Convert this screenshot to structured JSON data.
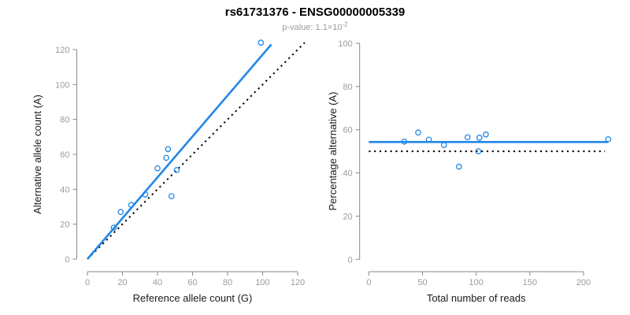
{
  "header": {
    "title": "rs61731376 - ENSG00000005339",
    "pvalue_prefix": "p-value: 1.1×10",
    "pvalue_exponent": "-2"
  },
  "colors": {
    "accent_blue": "#2287e8",
    "identity_line": "#000000",
    "axis_line": "#898989",
    "tick_label": "#9b9b9b",
    "axis_title": "#1a1a1a"
  },
  "chart_data": [
    {
      "type": "scatter",
      "name": "allele-counts-scatter",
      "xlabel": "Reference allele count (G)",
      "ylabel": "Alternative allele count (A)",
      "xlim": [
        0,
        120
      ],
      "ylim": [
        0,
        120
      ],
      "xticks": [
        0,
        20,
        40,
        60,
        80,
        100,
        120
      ],
      "yticks": [
        0,
        20,
        40,
        60,
        80,
        100,
        120
      ],
      "points": [
        [
          15,
          18
        ],
        [
          19,
          27
        ],
        [
          25,
          31
        ],
        [
          33,
          37
        ],
        [
          40,
          52
        ],
        [
          45,
          58
        ],
        [
          46,
          63
        ],
        [
          48,
          36
        ],
        [
          51,
          51
        ],
        [
          99,
          124
        ]
      ],
      "lines": [
        {
          "name": "identity-line",
          "style": "dotted",
          "color_key": "identity_line",
          "x": [
            0,
            124
          ],
          "y": [
            0,
            124
          ]
        },
        {
          "name": "fit-line",
          "style": "solid",
          "color_key": "accent_blue",
          "x": [
            0,
            105
          ],
          "y": [
            0,
            123
          ]
        }
      ]
    },
    {
      "type": "scatter",
      "name": "percentage-vs-reads-scatter",
      "xlabel": "Total number of reads",
      "ylabel": "Percentage alternative (A)",
      "xlim": [
        0,
        200
      ],
      "ylim": [
        0,
        100
      ],
      "xticks": [
        0,
        50,
        100,
        150,
        200
      ],
      "yticks": [
        0,
        20,
        40,
        60,
        80,
        100
      ],
      "points": [
        [
          33,
          54.5
        ],
        [
          46,
          58.7
        ],
        [
          56,
          55.4
        ],
        [
          70,
          52.9
        ],
        [
          84,
          42.9
        ],
        [
          92,
          56.5
        ],
        [
          102,
          50
        ],
        [
          103,
          56.3
        ],
        [
          109,
          57.8
        ],
        [
          223,
          55.6
        ]
      ],
      "lines": [
        {
          "name": "identity-line",
          "style": "dotted",
          "color_key": "identity_line",
          "x": [
            0,
            220
          ],
          "y": [
            50,
            50
          ]
        },
        {
          "name": "fit-line",
          "style": "solid",
          "color_key": "accent_blue",
          "x": [
            0,
            223
          ],
          "y": [
            54.3,
            54.3
          ]
        }
      ]
    }
  ]
}
